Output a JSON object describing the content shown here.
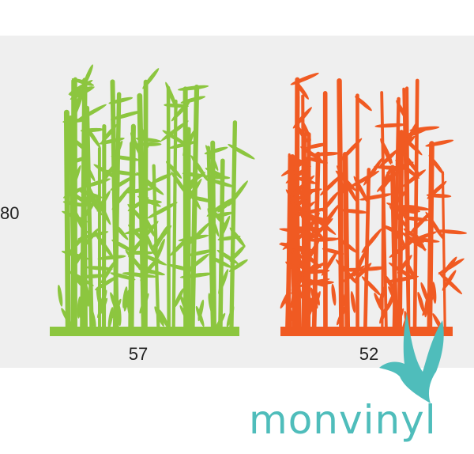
{
  "dimensions": {
    "height": "80",
    "width_left": "57",
    "width_right": "52"
  },
  "brand": "monvinyl"
}
